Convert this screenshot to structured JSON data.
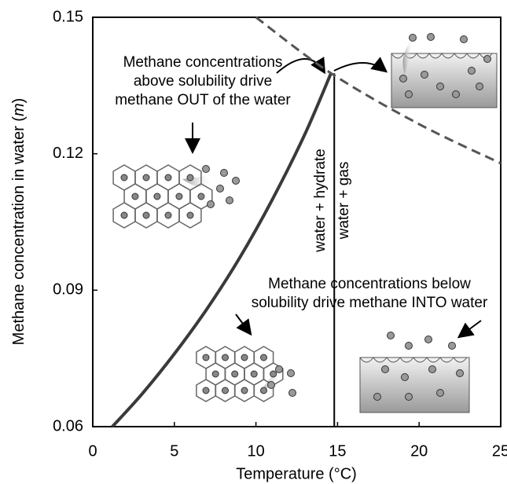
{
  "chart_data": {
    "type": "line",
    "xlabel": "Temperature (°C)",
    "ylabel": [
      "Methane concentration in water (",
      "m",
      ")"
    ],
    "xlim": [
      0,
      25
    ],
    "xticks": [
      0,
      5,
      10,
      15,
      20,
      25
    ],
    "ylim": [
      0.06,
      0.15
    ],
    "yticks": [
      0.06,
      0.09,
      0.12,
      0.15
    ],
    "series": [
      {
        "color": "#3a3a3a",
        "dash": false,
        "x": [
          1.2,
          3,
          5,
          7,
          9,
          11,
          13,
          14.6
        ],
        "values": [
          0.06,
          0.0671,
          0.076,
          0.0859,
          0.0971,
          0.1099,
          0.1243,
          0.1377
        ]
      },
      {
        "color": "#555555",
        "dash": true,
        "x": [
          10,
          14.6,
          20,
          25
        ],
        "values": [
          0.15,
          0.1377,
          0.1265,
          0.1179
        ]
      }
    ],
    "boundary": {
      "x": 14.8,
      "y": [
        0.06,
        0.1377
      ]
    },
    "annotations": {
      "above": [
        "Methane concentrations",
        "above solubility drive",
        "methane OUT of the water"
      ],
      "below": [
        "Methane concentrations below",
        "solubility drive methane INTO water"
      ],
      "left_region": "water + hydrate",
      "right_region": "water + gas"
    }
  }
}
